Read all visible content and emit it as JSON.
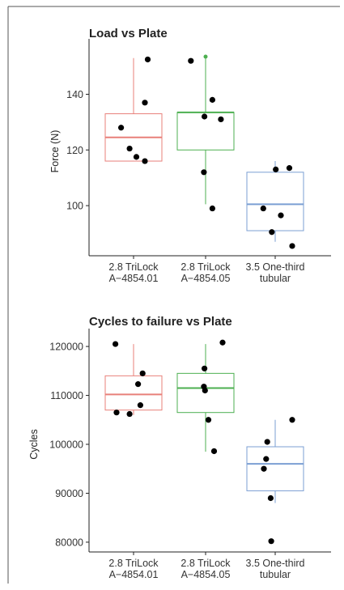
{
  "chart_data": [
    {
      "type": "boxplot",
      "title": "Load vs Plate",
      "xlabel": "",
      "ylabel": "Force (N)",
      "ylim": [
        82,
        157
      ],
      "yticks": [
        100,
        120,
        140
      ],
      "ytick_labels": [
        "100",
        "120",
        "140"
      ],
      "categories": [
        {
          "line1": "2.8 TriLock",
          "line2": "A−4854.01"
        },
        {
          "line1": "2.8 TriLock",
          "line2": "A−4854.05"
        },
        {
          "line1": "3.5 One-third",
          "line2": "tubular"
        }
      ],
      "colors": [
        "#e8807a",
        "#4caf50",
        "#7b9fd3"
      ],
      "boxes": [
        {
          "whisker_low": 116,
          "q1": 116,
          "median": 124.5,
          "q3": 133,
          "whisker_high": 153
        },
        {
          "whisker_low": 100.5,
          "q1": 120,
          "median": 133.5,
          "q3": 133.5,
          "whisker_high": 153.5
        },
        {
          "whisker_low": 87,
          "q1": 91,
          "median": 100.5,
          "q3": 112,
          "whisker_high": 116
        }
      ],
      "outliers": [
        {
          "group": 1,
          "y": 153.5
        }
      ],
      "points": [
        {
          "group": 0,
          "x": 0.25,
          "y": 152.5
        },
        {
          "group": 0,
          "x": 0.2,
          "y": 137
        },
        {
          "group": 0,
          "x": -0.22,
          "y": 128
        },
        {
          "group": 0,
          "x": -0.07,
          "y": 120.5
        },
        {
          "group": 0,
          "x": 0.05,
          "y": 117.5
        },
        {
          "group": 0,
          "x": 0.2,
          "y": 116
        },
        {
          "group": 1,
          "x": -0.26,
          "y": 152
        },
        {
          "group": 1,
          "x": 0.12,
          "y": 138
        },
        {
          "group": 1,
          "x": -0.02,
          "y": 132
        },
        {
          "group": 1,
          "x": 0.27,
          "y": 131
        },
        {
          "group": 1,
          "x": -0.03,
          "y": 112
        },
        {
          "group": 1,
          "x": 0.12,
          "y": 99
        },
        {
          "group": 2,
          "x": 0.01,
          "y": 113
        },
        {
          "group": 2,
          "x": 0.25,
          "y": 113.5
        },
        {
          "group": 2,
          "x": -0.21,
          "y": 99
        },
        {
          "group": 2,
          "x": 0.1,
          "y": 96.5
        },
        {
          "group": 2,
          "x": -0.06,
          "y": 90.5
        },
        {
          "group": 2,
          "x": 0.3,
          "y": 85.5
        }
      ]
    },
    {
      "type": "boxplot",
      "title": "Cycles to failure vs Plate",
      "xlabel": "",
      "ylabel": "Cycles",
      "ylim": [
        78000,
        122000
      ],
      "yticks": [
        80000,
        90000,
        100000,
        110000,
        120000
      ],
      "ytick_labels": [
        "80000",
        "90000",
        "100000",
        "110000",
        "120000"
      ],
      "categories": [
        {
          "line1": "2.8 TriLock",
          "line2": "A−4854.01"
        },
        {
          "line1": "2.8 TriLock",
          "line2": "A−4854.05"
        },
        {
          "line1": "3.5 One-third",
          "line2": "tubular"
        }
      ],
      "colors": [
        "#e8807a",
        "#4caf50",
        "#7b9fd3"
      ],
      "boxes": [
        {
          "whisker_low": 106000,
          "q1": 107000,
          "median": 110200,
          "q3": 114000,
          "whisker_high": 120500
        },
        {
          "whisker_low": 98500,
          "q1": 106500,
          "median": 111500,
          "q3": 114500,
          "whisker_high": 120500
        },
        {
          "whisker_low": 88000,
          "q1": 90500,
          "median": 96000,
          "q3": 99500,
          "whisker_high": 105000
        }
      ],
      "outliers": [],
      "points": [
        {
          "group": 0,
          "x": -0.32,
          "y": 120500
        },
        {
          "group": 0,
          "x": 0.16,
          "y": 114500
        },
        {
          "group": 0,
          "x": 0.08,
          "y": 112300
        },
        {
          "group": 0,
          "x": 0.12,
          "y": 108000
        },
        {
          "group": 0,
          "x": -0.3,
          "y": 106500
        },
        {
          "group": 0,
          "x": -0.07,
          "y": 106200
        },
        {
          "group": 1,
          "x": 0.3,
          "y": 120800
        },
        {
          "group": 1,
          "x": -0.02,
          "y": 115500
        },
        {
          "group": 1,
          "x": -0.03,
          "y": 111800
        },
        {
          "group": 1,
          "x": -0.01,
          "y": 111000
        },
        {
          "group": 1,
          "x": 0.05,
          "y": 105000
        },
        {
          "group": 1,
          "x": 0.15,
          "y": 98600
        },
        {
          "group": 2,
          "x": 0.3,
          "y": 105000
        },
        {
          "group": 2,
          "x": -0.14,
          "y": 100500
        },
        {
          "group": 2,
          "x": -0.16,
          "y": 97000
        },
        {
          "group": 2,
          "x": -0.2,
          "y": 95000
        },
        {
          "group": 2,
          "x": -0.08,
          "y": 89000
        },
        {
          "group": 2,
          "x": -0.07,
          "y": 80200
        }
      ]
    }
  ]
}
